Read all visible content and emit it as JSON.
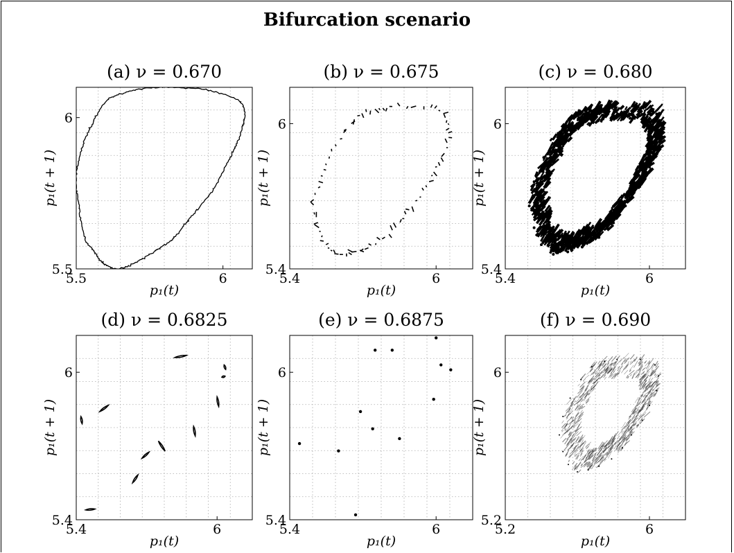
{
  "figure_title": "Bifurcation scenario",
  "chart_data": [
    {
      "type": "scatter",
      "title": "(a) ν = 0.670",
      "xlabel": "p₁(t)",
      "ylabel": "p₁(t + 1)",
      "xlim": [
        5.5,
        6.1
      ],
      "ylim": [
        5.5,
        6.1
      ],
      "xticks": [
        5.5,
        6
      ],
      "yticks": [
        5.5,
        6
      ],
      "xtick_labels": [
        "5.5",
        "6"
      ],
      "ytick_labels": [
        "5.5",
        "6"
      ],
      "grid": true,
      "pattern": "closed-curve",
      "x": [
        5.8,
        5.95,
        6.06,
        6.07,
        6.04,
        6.0,
        5.95,
        5.88,
        5.83,
        5.77,
        5.7,
        5.64,
        5.59,
        5.56,
        5.53,
        5.51,
        5.5,
        5.52,
        5.56,
        5.61,
        5.7
      ],
      "y": [
        6.1,
        6.09,
        6.05,
        5.98,
        5.9,
        5.82,
        5.74,
        5.66,
        5.6,
        5.56,
        5.52,
        5.5,
        5.52,
        5.56,
        5.6,
        5.7,
        5.8,
        5.9,
        5.99,
        6.06,
        6.09
      ]
    },
    {
      "type": "scatter",
      "title": "(b) ν = 0.675",
      "xlabel": "p₁(t)",
      "ylabel": "p₁(t + 1)",
      "xlim": [
        5.4,
        6.15
      ],
      "ylim": [
        5.4,
        6.15
      ],
      "xticks": [
        5.4,
        6
      ],
      "yticks": [
        5.4,
        6
      ],
      "xtick_labels": [
        "5.4",
        "6"
      ],
      "ytick_labels": [
        "5.4",
        "6"
      ],
      "grid": true,
      "pattern": "dashed-loop",
      "x": [
        5.82,
        5.95,
        6.03,
        6.05,
        6.04,
        6.0,
        5.96,
        5.9,
        5.85,
        5.79,
        5.72,
        5.66,
        5.6,
        5.55,
        5.52,
        5.5,
        5.52,
        5.56,
        5.62,
        5.68,
        5.75
      ],
      "y": [
        6.07,
        6.07,
        6.04,
        5.98,
        5.9,
        5.82,
        5.74,
        5.66,
        5.59,
        5.53,
        5.49,
        5.47,
        5.46,
        5.5,
        5.57,
        5.66,
        5.76,
        5.86,
        5.96,
        6.03,
        6.06
      ]
    },
    {
      "type": "scatter",
      "title": "(c) ν = 0.680",
      "xlabel": "p₁(t)",
      "ylabel": "p₁(t + 1)",
      "xlim": [
        5.4,
        6.15
      ],
      "ylim": [
        5.4,
        6.15
      ],
      "xticks": [
        5.4,
        6
      ],
      "yticks": [
        5.4,
        6
      ],
      "xtick_labels": [
        "5.4",
        "6"
      ],
      "ytick_labels": [
        "5.4",
        "6"
      ],
      "grid": true,
      "pattern": "thick-attractor",
      "x": [
        5.82,
        5.95,
        6.03,
        6.05,
        6.04,
        6.0,
        5.96,
        5.9,
        5.85,
        5.79,
        5.72,
        5.66,
        5.6,
        5.55,
        5.52,
        5.5,
        5.52,
        5.56,
        5.62,
        5.68,
        5.75
      ],
      "y": [
        6.07,
        6.07,
        6.04,
        5.98,
        5.9,
        5.82,
        5.74,
        5.66,
        5.59,
        5.53,
        5.49,
        5.47,
        5.46,
        5.5,
        5.57,
        5.66,
        5.76,
        5.86,
        5.96,
        6.03,
        6.06
      ]
    },
    {
      "type": "scatter",
      "title": "(d) ν = 0.6825",
      "xlabel": "p₁(t)",
      "ylabel": "p₁(t + 1)",
      "xlim": [
        5.4,
        6.15
      ],
      "ylim": [
        5.4,
        6.15
      ],
      "xticks": [
        5.4,
        6
      ],
      "yticks": [
        5.4,
        6
      ],
      "xtick_labels": [
        "5.4",
        "6"
      ],
      "ytick_labels": [
        "5.4",
        "6"
      ],
      "grid": true,
      "pattern": "fragments",
      "x": [
        5.82,
        6.03,
        6.02,
        6.0,
        5.9,
        5.75,
        5.68,
        5.64,
        5.5,
        5.42,
        5.44
      ],
      "y": [
        6.06,
        6.03,
        5.98,
        5.9,
        5.78,
        5.72,
        5.65,
        5.55,
        5.84,
        5.82,
        5.44
      ],
      "fragment_angles": [
        10,
        -70,
        15,
        -80,
        -80,
        -55,
        40,
        55,
        35,
        -80,
        5
      ],
      "fragment_lengths": [
        0.05,
        0.02,
        0.015,
        0.04,
        0.04,
        0.05,
        0.04,
        0.04,
        0.045,
        0.03,
        0.04
      ]
    },
    {
      "type": "scatter",
      "title": "(e) ν = 0.6875",
      "xlabel": "p₁(t)",
      "ylabel": "p₁(t + 1)",
      "xlim": [
        5.4,
        6.15
      ],
      "ylim": [
        5.4,
        6.15
      ],
      "xticks": [
        5.4,
        6
      ],
      "yticks": [
        5.4,
        6
      ],
      "xtick_labels": [
        "5.4",
        "6"
      ],
      "ytick_labels": [
        "5.4",
        "6"
      ],
      "grid": true,
      "pattern": "points",
      "x": [
        5.75,
        5.82,
        6.0,
        6.02,
        6.06,
        5.99,
        5.85,
        5.74,
        5.69,
        5.6,
        5.44,
        5.67
      ],
      "y": [
        6.09,
        6.09,
        6.14,
        6.03,
        6.01,
        5.89,
        5.73,
        5.77,
        5.84,
        5.68,
        5.71,
        5.42
      ]
    },
    {
      "type": "scatter",
      "title": "(f) ν = 0.690",
      "xlabel": "p₁(t)",
      "ylabel": "p₁(t + 1)",
      "xlim": [
        5.2,
        6.2
      ],
      "ylim": [
        5.2,
        6.2
      ],
      "xticks": [
        5.2,
        6
      ],
      "yticks": [
        5.2,
        6
      ],
      "xtick_labels": [
        "5.2",
        "6"
      ],
      "ytick_labels": [
        "5.2",
        "6"
      ],
      "grid": true,
      "pattern": "diffuse-attractor",
      "x": [
        5.82,
        5.95,
        6.03,
        6.05,
        6.04,
        6.0,
        5.96,
        5.9,
        5.85,
        5.79,
        5.72,
        5.66,
        5.6,
        5.55,
        5.52,
        5.5,
        5.52,
        5.56,
        5.62,
        5.68,
        5.75
      ],
      "y": [
        6.07,
        6.07,
        6.04,
        5.98,
        5.9,
        5.82,
        5.74,
        5.66,
        5.59,
        5.53,
        5.49,
        5.47,
        5.46,
        5.5,
        5.57,
        5.66,
        5.76,
        5.86,
        5.96,
        6.03,
        6.06
      ]
    }
  ]
}
